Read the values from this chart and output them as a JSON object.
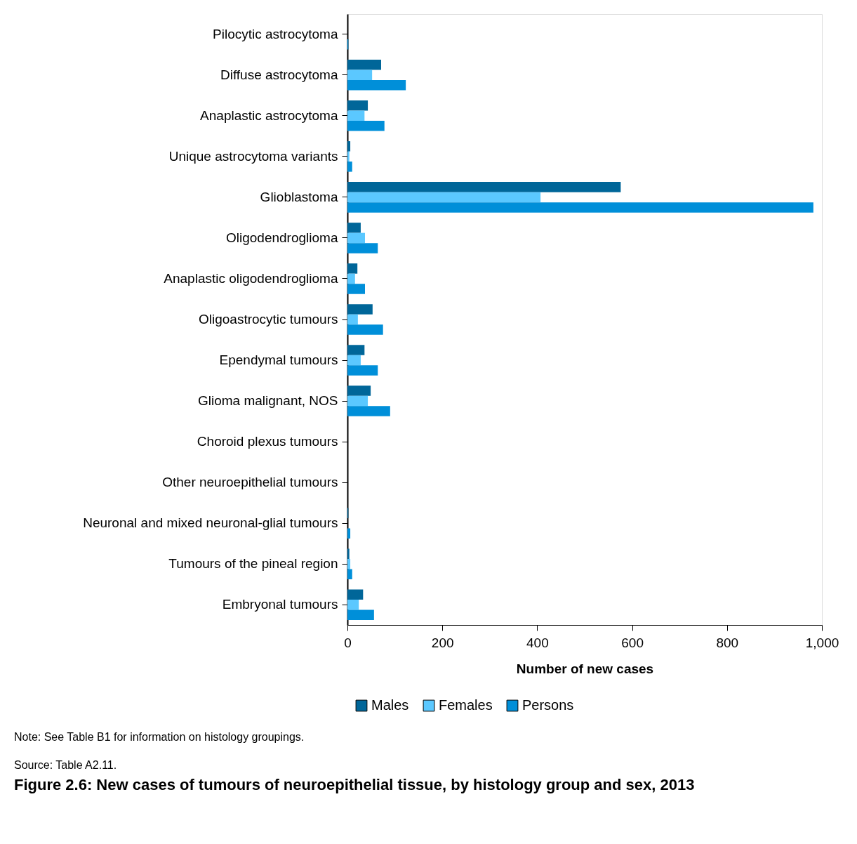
{
  "chart_data": {
    "type": "bar",
    "orientation": "horizontal",
    "title": "Figure 2.6: New cases of tumours of neuroepithelial tissue, by histology group and sex, 2013",
    "xlabel": "Number of new cases",
    "categories": [
      "Pilocytic astrocytoma",
      "Diffuse astrocytoma",
      "Anaplastic astrocytoma",
      "Unique astrocytoma variants",
      "Glioblastoma",
      "Oligodendroglioma",
      "Anaplastic oligodendroglioma",
      "Oligoastrocytic tumours",
      "Ependymal tumours",
      "Glioma malignant, NOS",
      "Choroid plexus tumours",
      "Other neuroepithelial tumours",
      "Neuronal and mixed neuronal-glial tumours",
      "Tumours of the pineal region",
      "Embryonal tumours"
    ],
    "series": [
      {
        "name": "Males",
        "color": "#006699",
        "values": [
          null,
          71,
          43,
          6,
          576,
          28,
          21,
          53,
          36,
          49,
          null,
          0,
          2,
          4,
          33
        ]
      },
      {
        "name": "Females",
        "color": "#5bc8ff",
        "values": [
          null,
          52,
          36,
          4,
          407,
          37,
          16,
          22,
          28,
          43,
          0,
          0,
          null,
          6,
          24
        ]
      },
      {
        "name": "Persons",
        "color": "#008fd9",
        "values": [
          2,
          123,
          78,
          10,
          982,
          64,
          37,
          75,
          64,
          90,
          null,
          0,
          6,
          10,
          56
        ]
      }
    ],
    "xlim": [
      0,
      1000
    ],
    "xticks": [
      0,
      200,
      400,
      600,
      800,
      {
        "value": 1000,
        "label": "1,000"
      }
    ],
    "grid": false,
    "legend": "bottom",
    "annotations": [
      "Note: See Table B1 for information on histology groupings.",
      "Source: Table A2.11."
    ]
  }
}
